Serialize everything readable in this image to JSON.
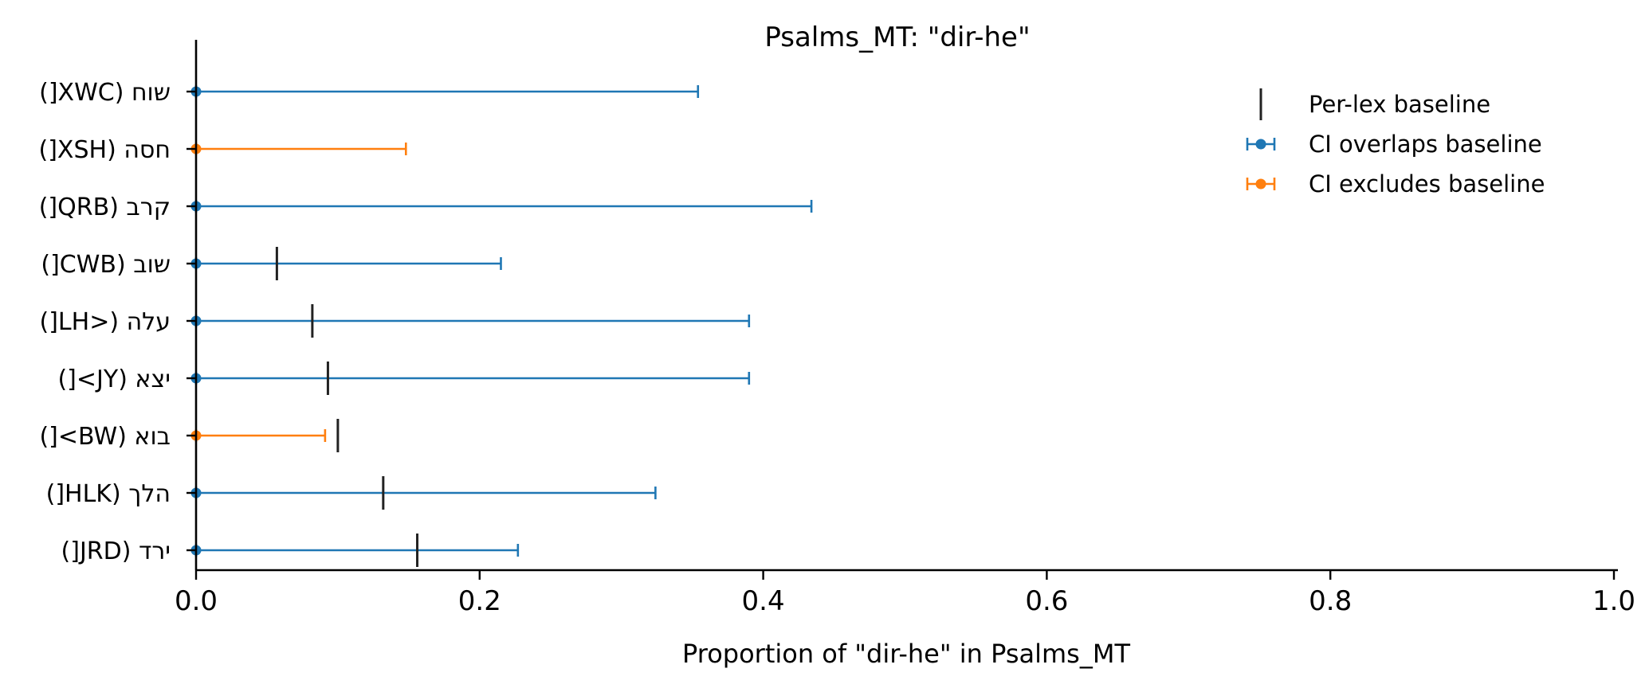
{
  "chart_data": {
    "type": "errorbar",
    "title": "Psalms_MT: \"dir-he\"",
    "xlabel": "Proportion of \"dir-he\" in Psalms_MT",
    "ylabel": "",
    "xlim": [
      0.0,
      1.0
    ],
    "xticks": [
      "0.0",
      "0.2",
      "0.4",
      "0.6",
      "0.8",
      "1.0"
    ],
    "grid": false,
    "legend_position": "top-right",
    "legend": [
      {
        "label": "Per-lex baseline",
        "marker": "vline",
        "color": "#222222"
      },
      {
        "label": "CI overlaps baseline",
        "marker": "errorbar",
        "color": "#1f77b4"
      },
      {
        "label": "CI excludes baseline",
        "marker": "errorbar",
        "color": "#ff7f0e"
      }
    ],
    "categories": [
      {
        "label": "שוח (XWC[)",
        "value": 0.0,
        "ci_low": 0.0,
        "ci_high": 0.354,
        "baseline": null,
        "status": "overlaps"
      },
      {
        "label": "חסה (XSH[)",
        "value": 0.0,
        "ci_low": 0.0,
        "ci_high": 0.148,
        "baseline": null,
        "status": "excludes"
      },
      {
        "label": "קרב (QRB[)",
        "value": 0.0,
        "ci_low": 0.0,
        "ci_high": 0.434,
        "baseline": null,
        "status": "overlaps"
      },
      {
        "label": "שוב (CWB[)",
        "value": 0.0,
        "ci_low": 0.0,
        "ci_high": 0.215,
        "baseline": 0.057,
        "status": "overlaps"
      },
      {
        "label": "עלה (<LH[)",
        "value": 0.0,
        "ci_low": 0.0,
        "ci_high": 0.39,
        "baseline": 0.082,
        "status": "overlaps"
      },
      {
        "label": "יצא (JY>[)",
        "value": 0.0,
        "ci_low": 0.0,
        "ci_high": 0.39,
        "baseline": 0.093,
        "status": "overlaps"
      },
      {
        "label": "בוא (BW>[)",
        "value": 0.0,
        "ci_low": 0.0,
        "ci_high": 0.091,
        "baseline": 0.1,
        "status": "excludes"
      },
      {
        "label": "הלך (HLK[)",
        "value": 0.0,
        "ci_low": 0.0,
        "ci_high": 0.324,
        "baseline": 0.132,
        "status": "overlaps"
      },
      {
        "label": "ירד (JRD[)",
        "value": 0.0,
        "ci_low": 0.0,
        "ci_high": 0.227,
        "baseline": 0.156,
        "status": "overlaps"
      }
    ],
    "colors": {
      "overlaps": "#1f77b4",
      "excludes": "#ff7f0e",
      "baseline": "#222222",
      "axis": "#000000"
    }
  }
}
